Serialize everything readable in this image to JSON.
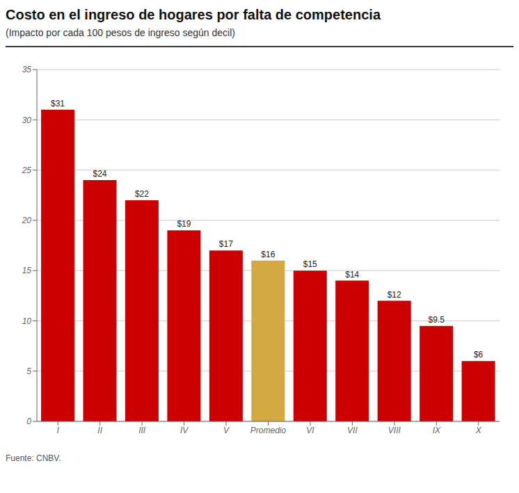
{
  "chart_data": {
    "type": "bar",
    "title": "Costo en el ingreso de hogares por falta de competencia",
    "subtitle": "(Impacto por cada 100 pesos de ingreso según decil)",
    "source": "Fuente: CNBV.",
    "categories": [
      "I",
      "II",
      "III",
      "IV",
      "V",
      "Promedio",
      "VI",
      "VII",
      "VIII",
      "IX",
      "X"
    ],
    "values": [
      31,
      24,
      22,
      19,
      17,
      16,
      15,
      14,
      12,
      9.5,
      6
    ],
    "value_labels": [
      "$31",
      "$24",
      "$22",
      "$19",
      "$17",
      "$16",
      "$15",
      "$14",
      "$12",
      "$9.5",
      "$6"
    ],
    "colors": [
      "#cc0000",
      "#cc0000",
      "#cc0000",
      "#cc0000",
      "#cc0000",
      "#d4a843",
      "#cc0000",
      "#cc0000",
      "#cc0000",
      "#cc0000",
      "#cc0000"
    ],
    "ylim": [
      0,
      35
    ],
    "yticks": [
      0,
      5,
      10,
      15,
      20,
      25,
      30,
      35
    ],
    "grid": true,
    "data_labels": true
  }
}
